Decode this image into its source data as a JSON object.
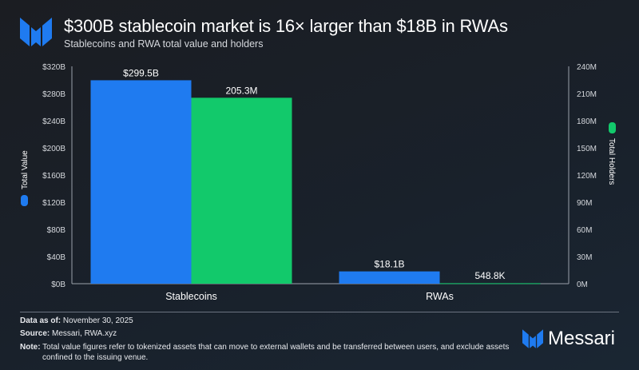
{
  "header": {
    "title": "$300B stablecoin market is 16× larger than $18B in RWAs",
    "subtitle": "Stablecoins and RWA total value and holders"
  },
  "chart_data": {
    "type": "bar",
    "categories": [
      "Stablecoins",
      "RWAs"
    ],
    "series": [
      {
        "name": "Total Value",
        "axis": "left",
        "color": "#1f7bf0",
        "values": [
          299.5,
          18.1
        ],
        "labels": [
          "$299.5B",
          "$18.1B"
        ]
      },
      {
        "name": "Total Holders",
        "axis": "right",
        "color": "#12c96b",
        "values": [
          205.3,
          0.5488
        ],
        "labels": [
          "205.3M",
          "548.8K"
        ]
      }
    ],
    "yleft": {
      "label": "Total Value",
      "range": [
        0,
        320
      ],
      "ticks": [
        "$0B",
        "$40B",
        "$80B",
        "$120B",
        "$160B",
        "$200B",
        "$240B",
        "$280B",
        "$320B"
      ]
    },
    "yright": {
      "label": "Total Holders",
      "range": [
        0,
        240
      ],
      "ticks": [
        "0M",
        "30M",
        "60M",
        "90M",
        "120M",
        "150M",
        "180M",
        "210M",
        "240M"
      ]
    },
    "grid": false
  },
  "footer": {
    "data_as_of_label": "Data as of:",
    "data_as_of": "November 30, 2025",
    "source_label": "Source:",
    "source": "Messari, RWA.xyz",
    "note_label": "Note:",
    "note": "Total value figures refer to tokenized assets that can move to external wallets and be transferred between users, and exclude assets confined to the issuing venue."
  },
  "brand": {
    "name": "Messari"
  }
}
